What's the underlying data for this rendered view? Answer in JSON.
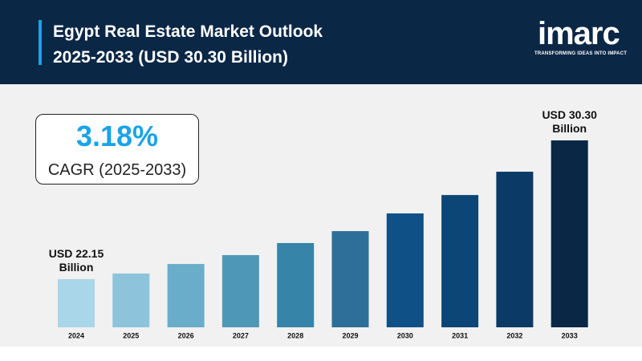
{
  "chart_data": {
    "type": "bar",
    "title": "Egypt Real Estate Market Outlook 2025-2033 (USD 30.30 Billion)",
    "brand": {
      "name": "imarc",
      "tagline": "TRANSFORMING IDEAS INTO IMPACT"
    },
    "cagr": {
      "value": "3.18%",
      "label": "CAGR (2025-2033)"
    },
    "categories": [
      "2024",
      "2025",
      "2026",
      "2027",
      "2028",
      "2029",
      "2030",
      "2031",
      "2032",
      "2033"
    ],
    "values": [
      22.15,
      22.48,
      23.04,
      23.56,
      24.27,
      24.97,
      26.01,
      27.09,
      28.46,
      30.3
    ],
    "value_labels": [
      "USD 22.15 Billion",
      null,
      null,
      null,
      null,
      null,
      null,
      null,
      null,
      "USD 30.30 Billion"
    ],
    "colors": [
      "#a9d6e9",
      "#8dc4dc",
      "#69adca",
      "#4f97b7",
      "#3684a8",
      "#2d6f98",
      "#0f5087",
      "#0c4677",
      "#0b3a66",
      "#0a2846"
    ],
    "ylim": [
      19.32,
      30.3
    ]
  }
}
